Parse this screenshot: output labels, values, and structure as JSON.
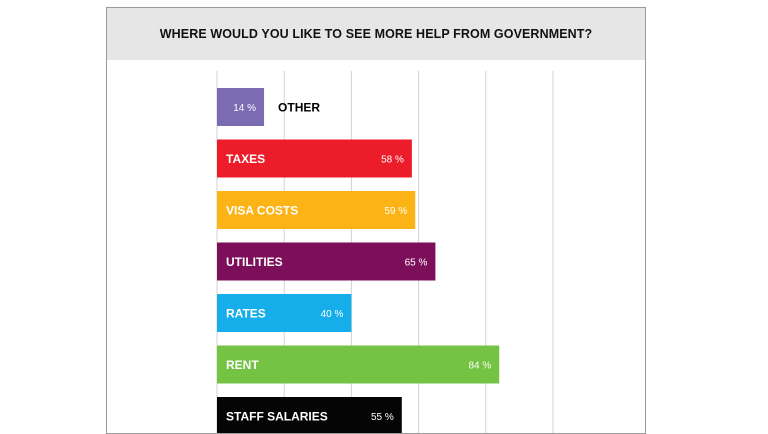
{
  "chart_data": {
    "type": "bar",
    "orientation": "horizontal",
    "title": "WHERE WOULD YOU LIKE TO SEE MORE HELP FROM GOVERNMENT?",
    "xlabel": "",
    "ylabel": "",
    "xlim": [
      0,
      100
    ],
    "grid": true,
    "unit": "%",
    "categories": [
      "OTHER",
      "TAXES",
      "VISA COSTS",
      "UTILITIES",
      "RATES",
      "RENT",
      "STAFF SALARIES"
    ],
    "values": [
      14,
      58,
      59,
      65,
      40,
      84,
      55
    ],
    "value_labels": [
      "14 %",
      "58 %",
      "59 %",
      "65 %",
      "40 %",
      "84 %",
      "55 %"
    ],
    "colors": [
      "#7b6bb3",
      "#ec1c2a",
      "#fbb316",
      "#7d0f5a",
      "#16aeea",
      "#74c343",
      "#050505"
    ],
    "category_label_colors": [
      "#000000",
      "#ffffff",
      "#ffffff",
      "#ffffff",
      "#ffffff",
      "#ffffff",
      "#ffffff"
    ]
  }
}
